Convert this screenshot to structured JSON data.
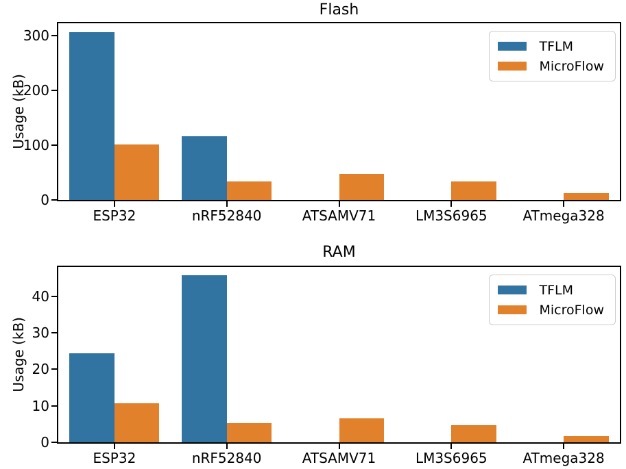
{
  "figure": {
    "background": "#ffffff",
    "spine_color": "#000000"
  },
  "colors": {
    "tflm": "#3274a1",
    "microflow": "#e1812c",
    "legend_border": "#cccccc"
  },
  "chart_data": [
    {
      "type": "bar",
      "title": "Flash",
      "ylabel": "Usage (kB)",
      "xlabel": "",
      "categories": [
        "ESP32",
        "nRF52840",
        "ATSAMV71",
        "LM3S6965",
        "ATmega328"
      ],
      "series": [
        {
          "name": "TFLM",
          "color": "#3274a1",
          "values": [
            307,
            117,
            0,
            0,
            0
          ]
        },
        {
          "name": "MicroFlow",
          "color": "#e1812c",
          "values": [
            101,
            34,
            48,
            34,
            13
          ]
        }
      ],
      "ylim": [
        0,
        323
      ],
      "yticks": [
        0,
        100,
        200,
        300
      ],
      "grid": false,
      "legend_position": "upper right"
    },
    {
      "type": "bar",
      "title": "RAM",
      "ylabel": "Usage (kB)",
      "xlabel": "",
      "categories": [
        "ESP32",
        "nRF52840",
        "ATSAMV71",
        "LM3S6965",
        "ATmega328"
      ],
      "series": [
        {
          "name": "TFLM",
          "color": "#3274a1",
          "values": [
            24.4,
            45.7,
            0,
            0,
            0
          ]
        },
        {
          "name": "MicroFlow",
          "color": "#e1812c",
          "values": [
            10.6,
            5.2,
            6.5,
            4.6,
            1.7
          ]
        }
      ],
      "ylim": [
        0,
        48
      ],
      "yticks": [
        0,
        10,
        20,
        30,
        40
      ],
      "grid": false,
      "legend_position": "upper right"
    }
  ]
}
